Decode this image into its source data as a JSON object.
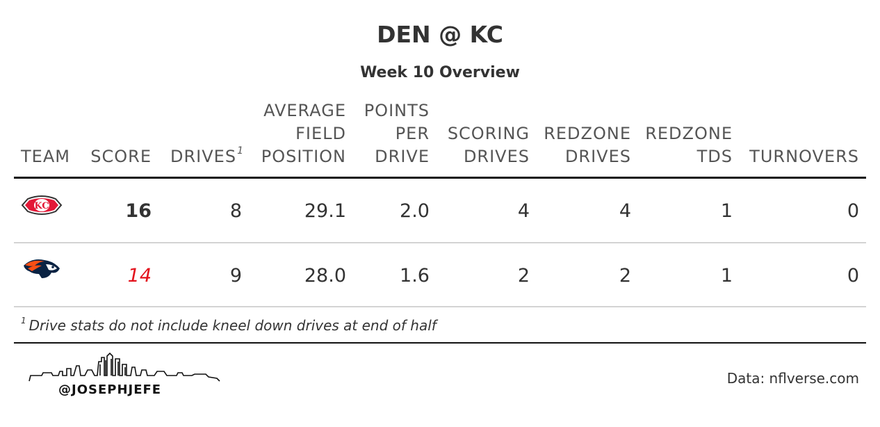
{
  "title": "DEN @ KC",
  "subtitle": "Week 10 Overview",
  "columns": {
    "team": "TEAM",
    "score": "SCORE",
    "drives": "DRIVES",
    "drives_footnote_mark": "1",
    "avg_field_position": [
      "AVERAGE",
      "FIELD",
      "POSITION"
    ],
    "points_per_drive": [
      "POINTS",
      "PER",
      "DRIVE"
    ],
    "scoring_drives": [
      "SCORING",
      "DRIVES"
    ],
    "redzone_drives": [
      "REDZONE",
      "DRIVES"
    ],
    "redzone_tds": [
      "REDZONE",
      "TDS"
    ],
    "turnovers": "TURNOVERS"
  },
  "rows": [
    {
      "team_logo": "chiefs-logo",
      "score": "16",
      "drives": "8",
      "avg_field_position": "29.1",
      "points_per_drive": "2.0",
      "scoring_drives": "4",
      "redzone_drives": "4",
      "redzone_tds": "1",
      "turnovers": "0"
    },
    {
      "team_logo": "broncos-logo",
      "score": "14",
      "drives": "9",
      "avg_field_position": "28.0",
      "points_per_drive": "1.6",
      "scoring_drives": "2",
      "redzone_drives": "2",
      "redzone_tds": "1",
      "turnovers": "0"
    }
  ],
  "footnote": {
    "mark": "1",
    "text": "Drive stats do not include kneel down drives at end of half"
  },
  "credit": {
    "handle": "@JOSEPHJEFE",
    "skyline_icon": "kansas-city-skyline-icon"
  },
  "source": "Data: nflverse.com",
  "colors": {
    "winner_score": "#333333",
    "loser_score": "#e3121c",
    "header_rule": "#111111",
    "row_rule": "#d3d3d3"
  }
}
